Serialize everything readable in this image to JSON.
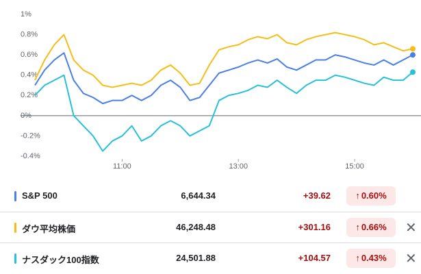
{
  "chart_data": {
    "type": "line",
    "x": [
      570,
      580,
      590,
      600,
      610,
      620,
      630,
      640,
      650,
      660,
      670,
      680,
      690,
      700,
      710,
      720,
      730,
      740,
      750,
      760,
      770,
      780,
      790,
      800,
      810,
      820,
      830,
      840,
      850,
      860,
      870,
      880,
      890,
      900,
      910,
      920,
      930,
      940,
      950,
      960
    ],
    "xlim": [
      570,
      960
    ],
    "xticks": [
      {
        "value": 660,
        "label": "11:00"
      },
      {
        "value": 780,
        "label": "13:00"
      },
      {
        "value": 900,
        "label": "15:00"
      }
    ],
    "ylim": [
      -0.4,
      1
    ],
    "yticks": [
      {
        "value": -0.4,
        "label": "-0.4%"
      },
      {
        "value": -0.2,
        "label": "-0.2%"
      },
      {
        "value": 0,
        "label": "0%"
      },
      {
        "value": 0.2,
        "label": "0.2%"
      },
      {
        "value": 0.4,
        "label": "0.4%"
      },
      {
        "value": 0.6,
        "label": "0.6%"
      },
      {
        "value": 0.8,
        "label": "0.8%"
      },
      {
        "value": 1,
        "label": "1%"
      }
    ],
    "series": [
      {
        "name": "S&P 500",
        "color": "#4a7ee8",
        "values": [
          0.3,
          0.45,
          0.55,
          0.62,
          0.35,
          0.22,
          0.18,
          0.12,
          0.15,
          0.15,
          0.2,
          0.15,
          0.2,
          0.3,
          0.35,
          0.28,
          0.15,
          0.18,
          0.3,
          0.42,
          0.45,
          0.48,
          0.52,
          0.55,
          0.52,
          0.56,
          0.48,
          0.45,
          0.5,
          0.55,
          0.55,
          0.6,
          0.58,
          0.55,
          0.52,
          0.5,
          0.55,
          0.5,
          0.55,
          0.6
        ]
      },
      {
        "name": "ダウ平均株価",
        "color": "#f6bd16",
        "values": [
          0.35,
          0.55,
          0.7,
          0.8,
          0.55,
          0.45,
          0.4,
          0.3,
          0.28,
          0.3,
          0.32,
          0.3,
          0.35,
          0.45,
          0.5,
          0.42,
          0.3,
          0.32,
          0.5,
          0.65,
          0.68,
          0.7,
          0.75,
          0.78,
          0.76,
          0.8,
          0.72,
          0.7,
          0.75,
          0.78,
          0.8,
          0.82,
          0.8,
          0.78,
          0.75,
          0.7,
          0.72,
          0.68,
          0.64,
          0.66
        ]
      },
      {
        "name": "ナスダック100指数",
        "color": "#26c0d8",
        "values": [
          0.2,
          0.3,
          0.35,
          0.4,
          0,
          -0.1,
          -0.2,
          -0.35,
          -0.25,
          -0.2,
          -0.1,
          -0.25,
          -0.2,
          -0.1,
          -0.05,
          -0.1,
          -0.2,
          -0.15,
          -0.1,
          0.15,
          0.2,
          0.22,
          0.25,
          0.3,
          0.28,
          0.35,
          0.28,
          0.22,
          0.3,
          0.35,
          0.35,
          0.4,
          0.38,
          0.35,
          0.32,
          0.3,
          0.38,
          0.35,
          0.35,
          0.43
        ]
      }
    ]
  },
  "table": {
    "rows": [
      {
        "price": "6,644.34",
        "change": "+39.62",
        "percent": "0.60%"
      },
      {
        "price": "46,248.48",
        "change": "+301.16",
        "percent": "0.66%"
      },
      {
        "price": "24,501.88",
        "change": "+104.57",
        "percent": "0.43%"
      }
    ]
  }
}
